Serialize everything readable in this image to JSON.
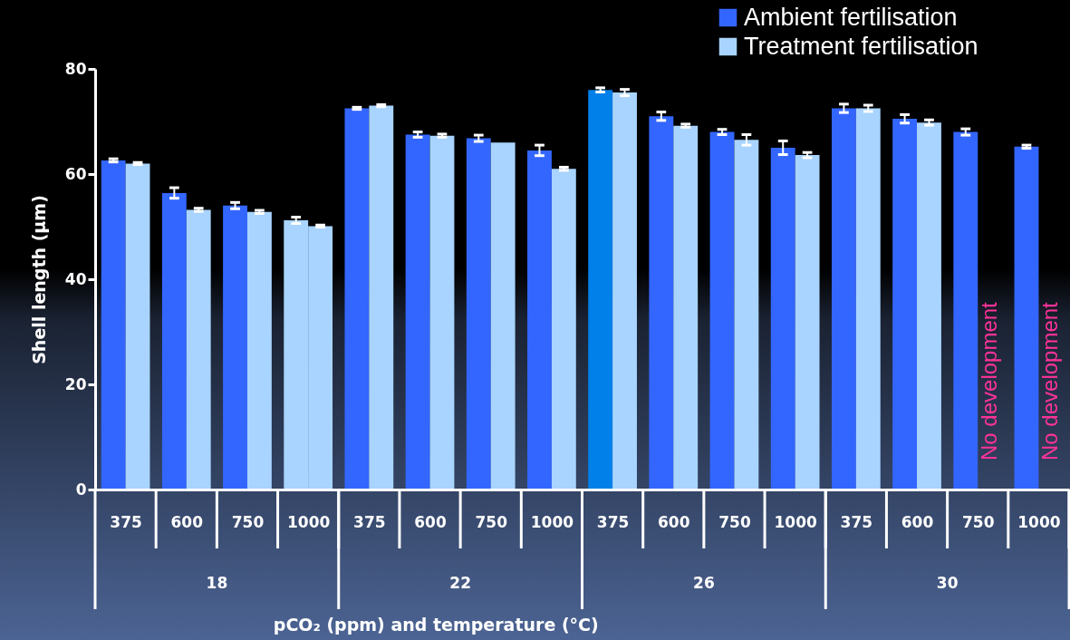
{
  "chart_data": {
    "type": "bar",
    "ylabel": "Shell length (µm)",
    "xlabel": "pCO₂ (ppm) and temperature (°C)",
    "categories": [
      "375",
      "600",
      "750",
      "1000",
      "375",
      "600",
      "750",
      "1000",
      "375",
      "600",
      "750",
      "1000",
      "375",
      "600",
      "750",
      "1000"
    ],
    "series": [
      {
        "name": "Ambient fertilisation",
        "color": "#3366ff",
        "colors": [
          "#3366ff",
          "#3366ff",
          "#3366ff",
          "#a8d4ff",
          "#3366ff",
          "#3366ff",
          "#3366ff",
          "#3366ff",
          "#0080e8",
          "#3366ff",
          "#3366ff",
          "#3366ff",
          "#3366ff",
          "#3366ff",
          "#3366ff",
          "#3366ff"
        ],
        "values": [
          62.6,
          56.4,
          54.0,
          51.2,
          72.5,
          67.5,
          66.8,
          64.5,
          76.0,
          71.0,
          68.0,
          65.0,
          72.5,
          70.5,
          68.0,
          65.2
        ],
        "errors": [
          0.3,
          1.0,
          0.6,
          0.6,
          0.2,
          0.5,
          0.6,
          1.0,
          0.4,
          0.8,
          0.5,
          1.3,
          0.8,
          0.8,
          0.6,
          0.3
        ]
      },
      {
        "name": "Treatment fertilisation",
        "color": "#a8d4ff",
        "values": [
          62.0,
          53.2,
          52.8,
          50.1,
          73.0,
          67.3,
          66.0,
          61.0,
          75.5,
          69.2,
          66.5,
          63.6,
          72.5,
          69.8,
          null,
          null
        ],
        "errors": [
          0.2,
          0.3,
          0.3,
          0.2,
          0.2,
          0.3,
          null,
          0.3,
          0.6,
          0.3,
          1.0,
          0.5,
          0.6,
          0.5,
          null,
          null
        ]
      }
    ],
    "ylim": [
      0,
      80
    ],
    "yticks": [
      0,
      20,
      40,
      60,
      80
    ],
    "grid": false,
    "legend": "top right",
    "annotations": [
      "18",
      "22",
      "26",
      "30",
      "No development",
      "No development"
    ]
  }
}
